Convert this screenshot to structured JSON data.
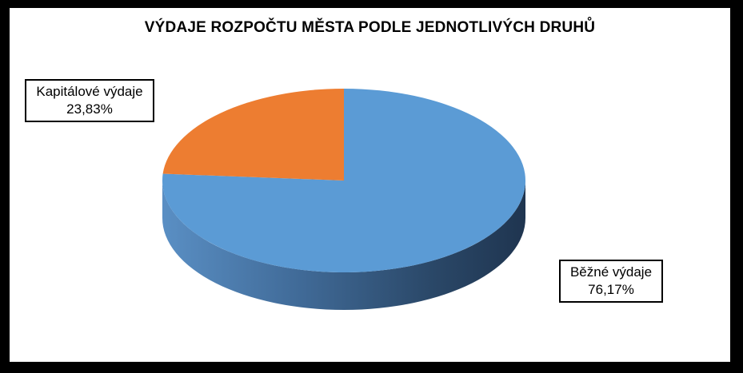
{
  "chart_data": {
    "type": "pie",
    "title": "VÝDAJE ROZPOČTU MĚSTA PODLE JEDNOTLIVÝCH DRUHŮ",
    "slices": [
      {
        "name": "Běžné výdaje",
        "value": 76.17,
        "label": "76,17%",
        "color": "#5b9bd5"
      },
      {
        "name": "Kapitálové výdaje",
        "value": 23.83,
        "label": "23,83%",
        "color": "#ed7d31"
      }
    ],
    "style": "3d"
  }
}
